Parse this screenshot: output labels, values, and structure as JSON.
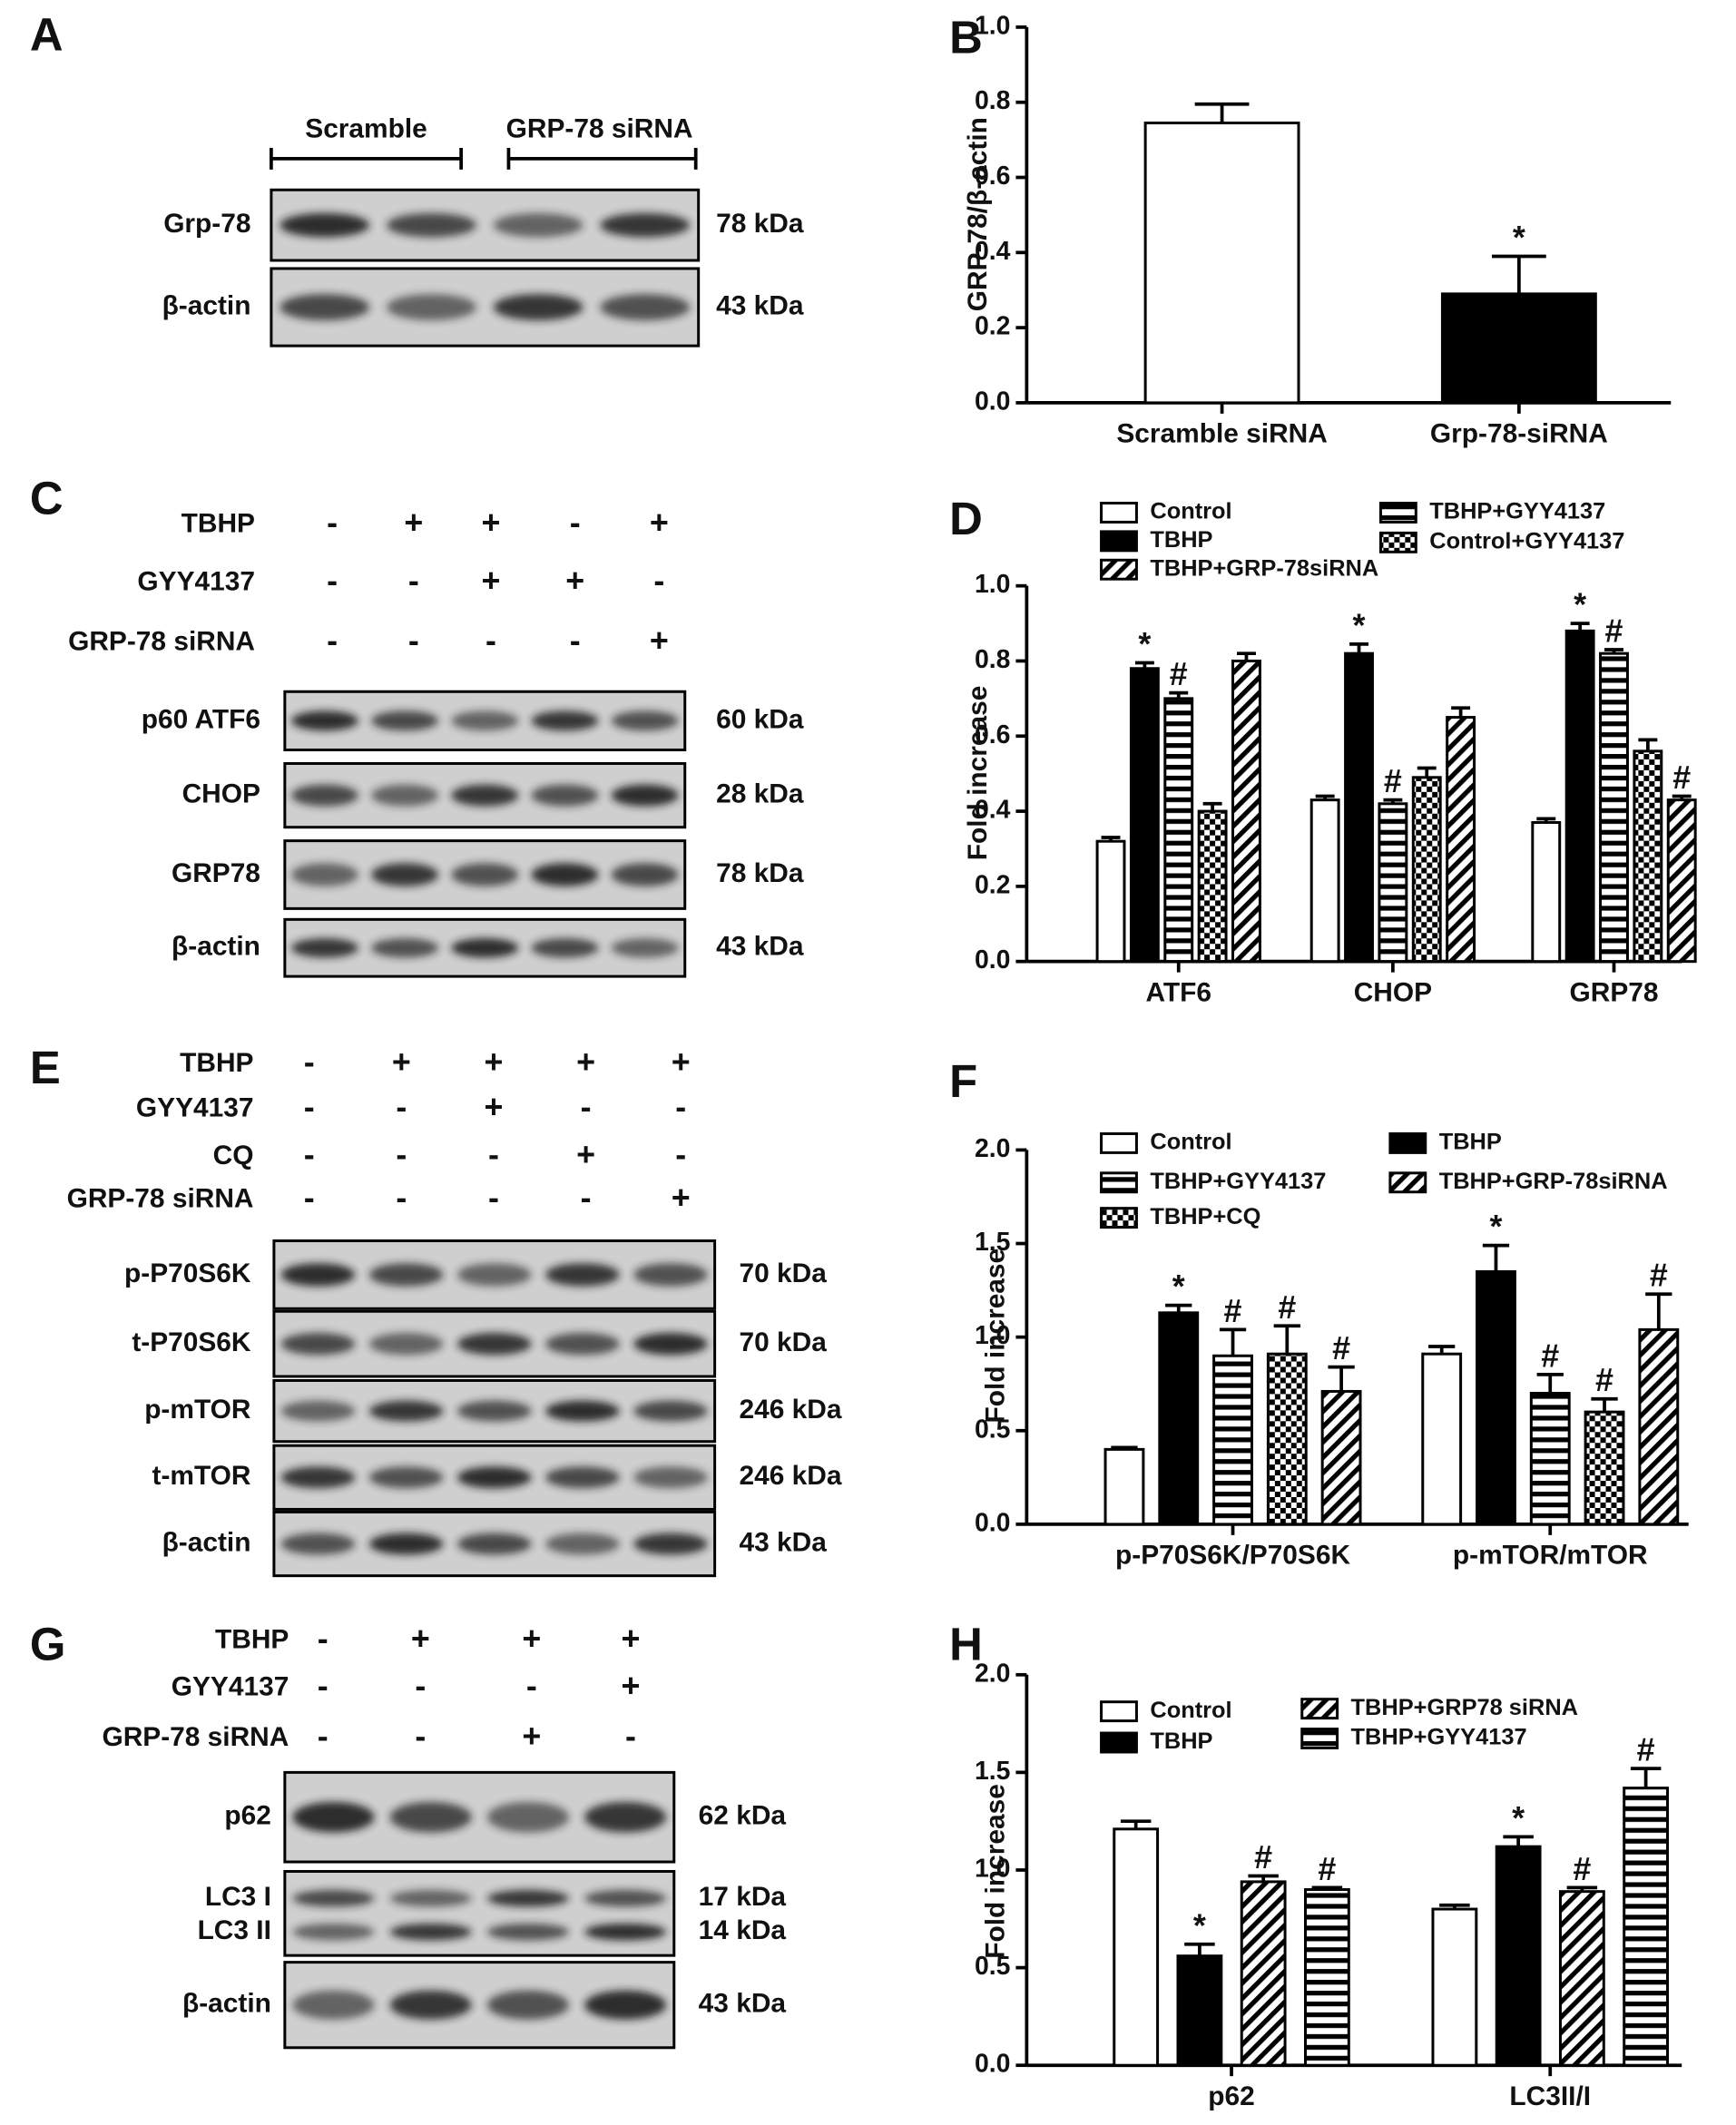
{
  "panels": [
    "A",
    "B",
    "C",
    "D",
    "E",
    "F",
    "G",
    "H"
  ],
  "blots": [
    {
      "groups": [
        "Scramble",
        "GRP-78 siRNA"
      ],
      "rows": [
        {
          "bands": [
            {
              "label": "Grp-78",
              "kda": "78 kDa"
            }
          ]
        },
        {
          "bands": [
            {
              "label": "β-actin",
              "kda": "43 kDa"
            }
          ]
        }
      ]
    },
    {
      "treatments": [
        {
          "name": "TBHP",
          "signs": [
            "-",
            "+",
            "+",
            "-",
            "+"
          ]
        },
        {
          "name": "GYY4137",
          "signs": [
            "-",
            "-",
            "+",
            "+",
            "-"
          ]
        },
        {
          "name": "GRP-78 siRNA",
          "signs": [
            "-",
            "-",
            "-",
            "-",
            "+"
          ]
        }
      ],
      "rows": [
        {
          "bands": [
            {
              "label": "p60 ATF6",
              "kda": "60 kDa"
            }
          ]
        },
        {
          "bands": [
            {
              "label": "CHOP",
              "kda": "28 kDa"
            }
          ]
        },
        {
          "bands": [
            {
              "label": "GRP78",
              "kda": "78 kDa"
            }
          ]
        },
        {
          "bands": [
            {
              "label": "β-actin",
              "kda": "43 kDa"
            }
          ]
        }
      ]
    },
    {
      "treatments": [
        {
          "name": "TBHP",
          "signs": [
            "-",
            "+",
            "+",
            "+",
            "+"
          ]
        },
        {
          "name": "GYY4137",
          "signs": [
            "-",
            "-",
            "+",
            "-",
            "-"
          ]
        },
        {
          "name": "CQ",
          "signs": [
            "-",
            "-",
            "-",
            "+",
            "-"
          ]
        },
        {
          "name": "GRP-78 siRNA",
          "signs": [
            "-",
            "-",
            "-",
            "-",
            "+"
          ]
        }
      ],
      "rows": [
        {
          "bands": [
            {
              "label": "p-P70S6K",
              "kda": "70 kDa"
            }
          ]
        },
        {
          "bands": [
            {
              "label": "t-P70S6K",
              "kda": "70 kDa"
            }
          ]
        },
        {
          "bands": [
            {
              "label": "p-mTOR",
              "kda": "246 kDa"
            }
          ]
        },
        {
          "bands": [
            {
              "label": "t-mTOR",
              "kda": "246 kDa"
            }
          ]
        },
        {
          "bands": [
            {
              "label": "β-actin",
              "kda": "43 kDa"
            }
          ]
        }
      ]
    },
    {
      "treatments": [
        {
          "name": "TBHP",
          "signs": [
            "-",
            "+",
            "+",
            "+"
          ]
        },
        {
          "name": "GYY4137",
          "signs": [
            "-",
            "-",
            "-",
            "+"
          ]
        },
        {
          "name": "GRP-78 siRNA",
          "signs": [
            "-",
            "-",
            "+",
            "-"
          ]
        }
      ],
      "rows": [
        {
          "bands": [
            {
              "label": "p62",
              "kda": "62 kDa"
            }
          ]
        },
        {
          "bands": [
            {
              "label": "LC3 I",
              "kda": "17 kDa"
            },
            {
              "label": "LC3 II",
              "kda": "14 kDa"
            }
          ]
        },
        {
          "bands": [
            {
              "label": "β-actin",
              "kda": "43 kDa"
            }
          ]
        }
      ]
    }
  ],
  "chart_data": [
    {
      "type": "bar",
      "y_label": "GRP-78/β-actin",
      "categories": [
        "Scramble siRNA",
        "Grp-78-siRNA"
      ],
      "values": [
        0.745,
        0.29
      ],
      "errors": [
        0.05,
        0.1
      ],
      "colors": [
        "#ffffff",
        "#000000"
      ],
      "annotations": [
        null,
        "*"
      ],
      "ylim": [
        0,
        1
      ],
      "yticks": [
        {
          "value": 0,
          "label": "0.0"
        },
        {
          "value": 0.2,
          "label": "0.2"
        },
        {
          "value": 0.4,
          "label": "0.4"
        },
        {
          "value": 0.6,
          "label": "0.6"
        },
        {
          "value": 0.8,
          "label": "0.8"
        },
        {
          "value": 1,
          "label": "1.0"
        }
      ]
    },
    {
      "type": "bar",
      "y_label": "Fold increase",
      "categories": [
        "ATF6",
        "CHOP",
        "GRP78"
      ],
      "series": [
        {
          "name": "Control",
          "color": "#ffffff",
          "pattern": "none",
          "values": [
            0.32,
            0.43,
            0.37
          ],
          "errors": [
            0.01,
            0.01,
            0.01
          ],
          "annotations": [
            null,
            null,
            null
          ]
        },
        {
          "name": "TBHP",
          "color": "#000000",
          "pattern": "none",
          "values": [
            0.78,
            0.82,
            0.88
          ],
          "errors": [
            0.015,
            0.025,
            0.02
          ],
          "annotations": [
            "*",
            "*",
            "*"
          ]
        },
        {
          "name": "TBHP+GYY4137",
          "color": "#000000",
          "pattern": "horizontal",
          "values": [
            0.7,
            0.42,
            0.82
          ],
          "errors": [
            0.015,
            0.01,
            0.01
          ],
          "annotations": [
            "#",
            "#",
            "#"
          ]
        },
        {
          "name": "Control+GYY4137",
          "color": "#000000",
          "pattern": "checker",
          "values": [
            0.4,
            0.49,
            0.56
          ],
          "errors": [
            0.02,
            0.025,
            0.03
          ],
          "annotations": [
            null,
            null,
            null
          ]
        },
        {
          "name": "TBHP+GRP-78siRNA",
          "color": "#000000",
          "pattern": "diagonal",
          "values": [
            0.8,
            0.65,
            0.43
          ],
          "errors": [
            0.02,
            0.025,
            0.01
          ],
          "annotations": [
            null,
            null,
            "#"
          ]
        }
      ],
      "ylim": [
        0,
        1
      ],
      "yticks": [
        {
          "value": 0,
          "label": "0.0"
        },
        {
          "value": 0.2,
          "label": "0.2"
        },
        {
          "value": 0.4,
          "label": "0.4"
        },
        {
          "value": 0.6,
          "label": "0.6"
        },
        {
          "value": 0.8,
          "label": "0.8"
        },
        {
          "value": 1,
          "label": "1.0"
        }
      ]
    },
    {
      "type": "bar",
      "y_label": "Fold increase",
      "categories": [
        "p-P70S6K/P70S6K",
        "p-mTOR/mTOR"
      ],
      "series": [
        {
          "name": "Control",
          "color": "#ffffff",
          "pattern": "none",
          "values": [
            0.4,
            0.91
          ],
          "errors": [
            0.01,
            0.04
          ],
          "annotations": [
            null,
            null
          ]
        },
        {
          "name": "TBHP",
          "color": "#000000",
          "pattern": "none",
          "values": [
            1.13,
            1.35
          ],
          "errors": [
            0.04,
            0.14
          ],
          "annotations": [
            "*",
            "*"
          ]
        },
        {
          "name": "TBHP+GYY4137",
          "color": "#000000",
          "pattern": "horizontal",
          "values": [
            0.9,
            0.7
          ],
          "errors": [
            0.14,
            0.1
          ],
          "annotations": [
            "#",
            "#"
          ]
        },
        {
          "name": "TBHP+CQ",
          "color": "#000000",
          "pattern": "checker",
          "values": [
            0.91,
            0.6
          ],
          "errors": [
            0.15,
            0.07
          ],
          "annotations": [
            "#",
            "#"
          ]
        },
        {
          "name": "TBHP+GRP-78siRNA",
          "color": "#000000",
          "pattern": "diagonal",
          "values": [
            0.71,
            1.04
          ],
          "errors": [
            0.13,
            0.19
          ],
          "annotations": [
            "#",
            "#"
          ]
        }
      ],
      "ylim": [
        0,
        2
      ],
      "yticks": [
        {
          "value": 0,
          "label": "0.0"
        },
        {
          "value": 0.5,
          "label": "0.5"
        },
        {
          "value": 1,
          "label": "1.0"
        },
        {
          "value": 1.5,
          "label": "1.5"
        },
        {
          "value": 2,
          "label": "2.0"
        }
      ]
    },
    {
      "type": "bar",
      "y_label": "Fold increase",
      "categories": [
        "p62",
        "LC3II/I"
      ],
      "series": [
        {
          "name": "Control",
          "color": "#ffffff",
          "pattern": "none",
          "values": [
            1.21,
            0.8
          ],
          "errors": [
            0.04,
            0.02
          ],
          "annotations": [
            null,
            null
          ]
        },
        {
          "name": "TBHP",
          "color": "#000000",
          "pattern": "none",
          "values": [
            0.56,
            1.12
          ],
          "errors": [
            0.06,
            0.05
          ],
          "annotations": [
            "*",
            "*"
          ]
        },
        {
          "name": "TBHP+GRP78 siRNA",
          "color": "#000000",
          "pattern": "diagonal",
          "values": [
            0.94,
            0.89
          ],
          "errors": [
            0.03,
            0.02
          ],
          "annotations": [
            "#",
            "#"
          ]
        },
        {
          "name": "TBHP+GYY4137",
          "color": "#000000",
          "pattern": "horizontal",
          "values": [
            0.9,
            1.42
          ],
          "errors": [
            0.01,
            0.1
          ],
          "annotations": [
            "#",
            "#"
          ]
        }
      ],
      "ylim": [
        0,
        2
      ],
      "yticks": [
        {
          "value": 0,
          "label": "0.0"
        },
        {
          "value": 0.5,
          "label": "0.5"
        },
        {
          "value": 1,
          "label": "1.0"
        },
        {
          "value": 1.5,
          "label": "1.5"
        },
        {
          "value": 2,
          "label": "2.0"
        }
      ]
    }
  ]
}
